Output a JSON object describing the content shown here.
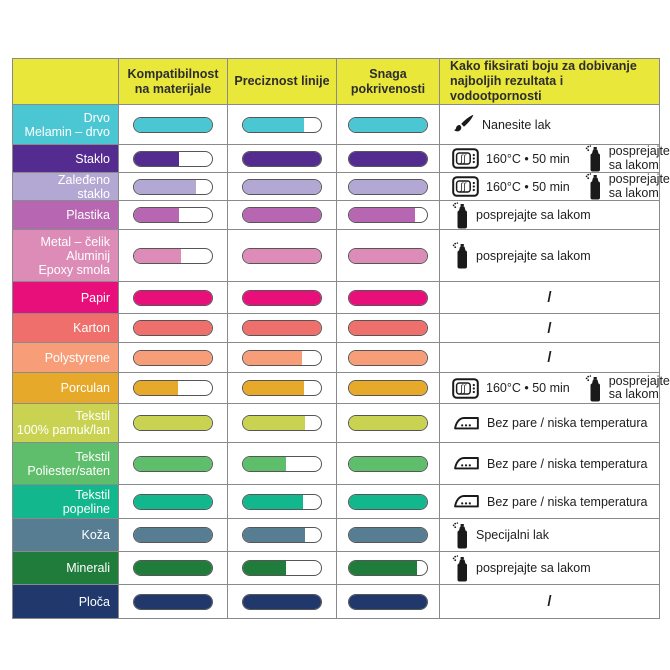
{
  "header": {
    "col_material": "",
    "col_compat": "Kompatibilnost na materijale",
    "col_precision": "Preciznost linije",
    "col_coverage": "Snaga pokrivenosti",
    "col_fixation": "Kako fiksirati boju za dobivanje najboljih rezultata i vodootpornosti",
    "background": "#EAE73B",
    "text_color": "#2d2d2d"
  },
  "styles": {
    "grid_line": "#8a8a8a",
    "pill_border": "#565656",
    "pill_empty": "#ffffff",
    "label_text": "#ffffff",
    "instruction_text": "#1e1e1e"
  },
  "chart_data": {
    "type": "table",
    "columns": [
      "Materijal",
      "Kompatibilnost na materijale",
      "Preciznost linije",
      "Snaga pokrivenosti",
      "Kako fiksirati boju za dobivanje najboljih rezultata i vodootpornosti"
    ],
    "value_semantics": "fill fraction (0-1) of each pill gauge",
    "rows": [
      {
        "material": "Drvo\nMelamin – drvo",
        "color": "#4AC7D3",
        "fills": [
          1,
          0.78,
          1
        ],
        "fixation": {
          "parts": [
            {
              "icon": "brush-icon",
              "text": "Nanesite lak"
            }
          ]
        }
      },
      {
        "material": "Staklo",
        "color": "#542B8F",
        "fills": [
          0.58,
          1,
          1
        ],
        "fixation": {
          "parts": [
            {
              "icon": "oven-icon",
              "text": "160°C • 50 min"
            },
            {
              "icon": "spray-icon",
              "text": "posprejajte sa lakom",
              "wrap": true
            }
          ]
        }
      },
      {
        "material": "Zaleđeno\nstaklo",
        "color": "#B3A7D4",
        "fills": [
          0.8,
          1,
          1
        ],
        "fixation": {
          "parts": [
            {
              "icon": "oven-icon",
              "text": "160°C • 50 min"
            },
            {
              "icon": "spray-icon",
              "text": "posprejajte sa lakom",
              "wrap": true
            }
          ]
        }
      },
      {
        "material": "Plastika",
        "color": "#B766B1",
        "fills": [
          0.58,
          1,
          0.85
        ],
        "fixation": {
          "parts": [
            {
              "icon": "spray-icon",
              "text": "posprejajte sa lakom"
            }
          ]
        }
      },
      {
        "material": "Metal – čelik\nAluminij\nEpoxy smola",
        "color": "#DC8CB7",
        "fills": [
          0.6,
          1,
          1
        ],
        "fixation": {
          "parts": [
            {
              "icon": "spray-icon",
              "text": "posprejajte sa lakom"
            }
          ]
        }
      },
      {
        "material": "Papir",
        "color": "#E90F7B",
        "fills": [
          1,
          1,
          1
        ],
        "fixation": {
          "parts": [
            {
              "text": "/"
            }
          ]
        }
      },
      {
        "material": "Karton",
        "color": "#EE6F6B",
        "fills": [
          1,
          1,
          1
        ],
        "fixation": {
          "parts": [
            {
              "text": "/"
            }
          ]
        }
      },
      {
        "material": "Polystyrene",
        "color": "#F79E78",
        "fills": [
          1,
          0.76,
          1
        ],
        "fixation": {
          "parts": [
            {
              "text": "/"
            }
          ]
        }
      },
      {
        "material": "Porculan",
        "color": "#E7A92A",
        "fills": [
          0.56,
          0.78,
          1
        ],
        "fixation": {
          "parts": [
            {
              "icon": "oven-icon",
              "text": "160°C • 50 min"
            },
            {
              "icon": "spray-icon",
              "text": "posprejajte sa lakom",
              "wrap": true
            }
          ]
        }
      },
      {
        "material": "Tekstil\n100% pamuk/lan",
        "color": "#C9D351",
        "fills": [
          1,
          0.8,
          1
        ],
        "fixation": {
          "parts": [
            {
              "icon": "iron-icon",
              "text": "Bez pare / niska temperatura"
            }
          ]
        }
      },
      {
        "material": "Tekstil\nPoliester/saten",
        "color": "#5FBE6B",
        "fills": [
          1,
          0.55,
          1
        ],
        "fixation": {
          "parts": [
            {
              "icon": "iron-icon",
              "text": "Bez pare / niska temperatura"
            }
          ]
        }
      },
      {
        "material": "Tekstil\npopeline",
        "color": "#12B78D",
        "fills": [
          1,
          0.77,
          1
        ],
        "fixation": {
          "parts": [
            {
              "icon": "iron-icon",
              "text": "Bez pare / niska temperatura"
            }
          ]
        }
      },
      {
        "material": "Koža",
        "color": "#567D92",
        "fills": [
          1,
          0.8,
          1
        ],
        "fixation": {
          "parts": [
            {
              "icon": "spray-icon",
              "text": "Specijalni lak"
            }
          ]
        }
      },
      {
        "material": "Minerali",
        "color": "#1F7C3B",
        "fills": [
          1,
          0.55,
          0.87
        ],
        "fixation": {
          "parts": [
            {
              "icon": "spray-icon",
              "text": "posprejajte sa lakom"
            }
          ]
        }
      },
      {
        "material": "Ploča",
        "color": "#21386D",
        "fills": [
          1,
          1,
          1
        ],
        "fixation": {
          "parts": [
            {
              "text": "/"
            }
          ]
        }
      }
    ]
  }
}
